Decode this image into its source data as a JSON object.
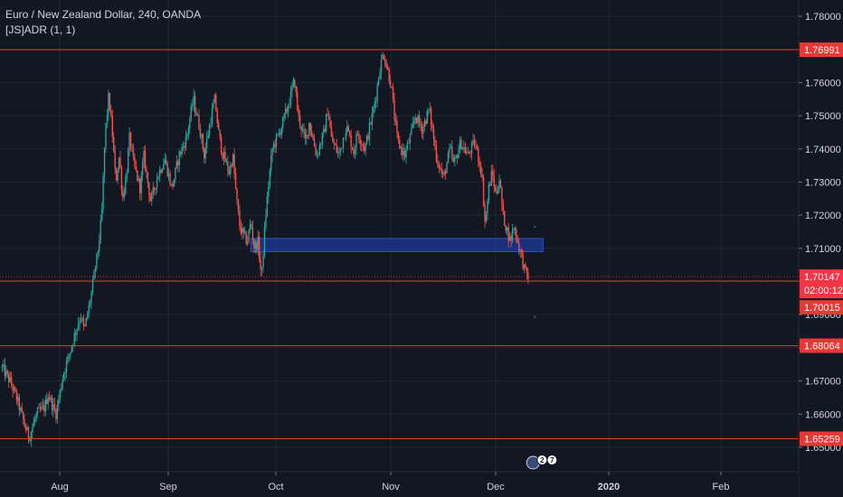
{
  "header": {
    "title": "Euro / New Zealand Dollar, 240, OANDA",
    "indicator": "[JS]ADR (1, 1)"
  },
  "colors": {
    "background": "#131722",
    "grid": "#1f2430",
    "axis_text": "#d1d4dc",
    "up": "#26a69a",
    "down": "#ef5350",
    "level_line": "#e53935",
    "zone": "#1f3a9a",
    "last_price_tag": "#f23645"
  },
  "chart_data": {
    "type": "candlestick",
    "symbol": "EURNZD",
    "timeframe": "240",
    "source": "OANDA",
    "x_tick_labels": [
      "Aug",
      "Sep",
      "Oct",
      "Nov",
      "Dec",
      "2020",
      "Feb"
    ],
    "y_tick_labels": [
      "1.78000",
      "1.77000",
      "1.76000",
      "1.75000",
      "1.74000",
      "1.73000",
      "1.72000",
      "1.71000",
      "1.70000",
      "1.69000",
      "1.68000",
      "1.67000",
      "1.66000",
      "1.65000"
    ],
    "ylim": [
      1.645,
      1.7835
    ],
    "price_path": [
      [
        "Jul 17",
        1.674
      ],
      [
        "Jul 19",
        1.67
      ],
      [
        "Jul 21",
        1.664
      ],
      [
        "Jul 23",
        1.656
      ],
      [
        "Jul 24",
        1.653
      ],
      [
        "Jul 26",
        1.66
      ],
      [
        "Jul 28",
        1.662
      ],
      [
        "Jul 29",
        1.666
      ],
      [
        "Jul 31",
        1.66
      ],
      [
        "Aug 2",
        1.672
      ],
      [
        "Aug 4",
        1.679
      ],
      [
        "Aug 5",
        1.683
      ],
      [
        "Aug 7",
        1.69
      ],
      [
        "Aug 8",
        1.685
      ],
      [
        "Aug 10",
        1.696
      ],
      [
        "Aug 12",
        1.71
      ],
      [
        "Aug 13",
        1.72
      ],
      [
        "Aug 14",
        1.745
      ],
      [
        "Aug 15",
        1.756
      ],
      [
        "Aug 16",
        1.745
      ],
      [
        "Aug 17",
        1.73
      ],
      [
        "Aug 18",
        1.738
      ],
      [
        "Aug 19",
        1.725
      ],
      [
        "Aug 20",
        1.732
      ],
      [
        "Aug 21",
        1.744
      ],
      [
        "Aug 22",
        1.736
      ],
      [
        "Aug 24",
        1.728
      ],
      [
        "Aug 25",
        1.738
      ],
      [
        "Aug 27",
        1.724
      ],
      [
        "Aug 29",
        1.732
      ],
      [
        "Aug 31",
        1.737
      ],
      [
        "Sep 2",
        1.728
      ],
      [
        "Sep 4",
        1.738
      ],
      [
        "Sep 6",
        1.743
      ],
      [
        "Sep 8",
        1.755
      ],
      [
        "Sep 10",
        1.745
      ],
      [
        "Sep 11",
        1.738
      ],
      [
        "Sep 13",
        1.75
      ],
      [
        "Sep 14",
        1.755
      ],
      [
        "Sep 15",
        1.745
      ],
      [
        "Sep 16",
        1.739
      ],
      [
        "Sep 18",
        1.733
      ],
      [
        "Sep 19",
        1.738
      ],
      [
        "Sep 20",
        1.725
      ],
      [
        "Sep 21",
        1.716
      ],
      [
        "Sep 23",
        1.712
      ],
      [
        "Sep 24",
        1.718
      ],
      [
        "Sep 25",
        1.71
      ],
      [
        "Sep 26",
        1.712
      ],
      [
        "Sep 27",
        1.701
      ],
      [
        "Sep 28",
        1.718
      ],
      [
        "Sep 29",
        1.73
      ],
      [
        "Sep 30",
        1.74
      ],
      [
        "Oct 2",
        1.745
      ],
      [
        "Oct 4",
        1.752
      ],
      [
        "Oct 5",
        1.756
      ],
      [
        "Oct 6",
        1.761
      ],
      [
        "Oct 7",
        1.75
      ],
      [
        "Oct 9",
        1.742
      ],
      [
        "Oct 10",
        1.748
      ],
      [
        "Oct 12",
        1.738
      ],
      [
        "Oct 14",
        1.745
      ],
      [
        "Oct 15",
        1.752
      ],
      [
        "Oct 16",
        1.743
      ],
      [
        "Oct 18",
        1.738
      ],
      [
        "Oct 20",
        1.747
      ],
      [
        "Oct 22",
        1.739
      ],
      [
        "Oct 23",
        1.745
      ],
      [
        "Oct 25",
        1.74
      ],
      [
        "Oct 27",
        1.75
      ],
      [
        "Oct 28",
        1.756
      ],
      [
        "Oct 29",
        1.764
      ],
      [
        "Oct 30",
        1.769
      ],
      [
        "Nov 1",
        1.76
      ],
      [
        "Nov 2",
        1.75
      ],
      [
        "Nov 3",
        1.742
      ],
      [
        "Nov 5",
        1.738
      ],
      [
        "Nov 7",
        1.745
      ],
      [
        "Nov 8",
        1.75
      ],
      [
        "Nov 10",
        1.746
      ],
      [
        "Nov 12",
        1.752
      ],
      [
        "Nov 13",
        1.745
      ],
      [
        "Nov 14",
        1.738
      ],
      [
        "Nov 16",
        1.731
      ],
      [
        "Nov 18",
        1.74
      ],
      [
        "Nov 19",
        1.735
      ],
      [
        "Nov 21",
        1.742
      ],
      [
        "Nov 23",
        1.738
      ],
      [
        "Nov 25",
        1.742
      ],
      [
        "Nov 27",
        1.733
      ],
      [
        "Nov 28",
        1.717
      ],
      [
        "Nov 29",
        1.728
      ],
      [
        "Nov 30",
        1.733
      ],
      [
        "Dec 1",
        1.726
      ],
      [
        "Dec 2",
        1.731
      ],
      [
        "Dec 3",
        1.72
      ],
      [
        "Dec 5",
        1.712
      ],
      [
        "Dec 6",
        1.717
      ],
      [
        "Dec 7",
        1.712
      ],
      [
        "Dec 8",
        1.708
      ],
      [
        "Dec 9",
        1.703
      ],
      [
        "Dec 10",
        1.7015
      ]
    ],
    "horizontal_levels": [
      {
        "price": 1.76991,
        "label": "1.76991"
      },
      {
        "price": 1.70015,
        "label": "1.70015"
      },
      {
        "price": 1.68064,
        "label": "1.68064"
      },
      {
        "price": 1.65259,
        "label": "1.65259"
      }
    ],
    "last_price": {
      "price": 1.70147,
      "label": "1.70147",
      "countdown": "02:00:12"
    },
    "zone": {
      "price_top": 1.713,
      "price_bottom": 1.709,
      "start": "Sep 24",
      "end": "Dec 11"
    },
    "event_markers": {
      "date": "Dec 11",
      "labels": [
        "2",
        "7"
      ]
    }
  }
}
